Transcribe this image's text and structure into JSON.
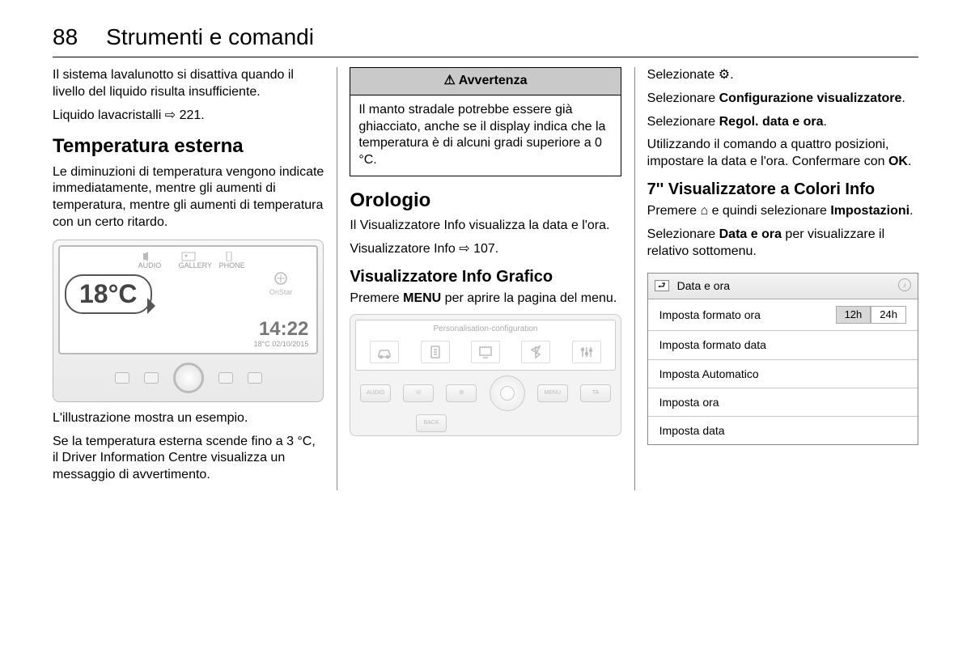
{
  "header": {
    "page_num": "88",
    "chapter": "Strumenti e comandi"
  },
  "col1": {
    "p1": "Il sistema lavalunotto si disattiva quando il livello del liquido risulta insufficiente.",
    "p2": "Liquido lavacristalli ⇨ 221.",
    "h1": "Temperatura esterna",
    "p3": "Le diminuzioni di temperatura vengono indicate immediatamente, mentre gli aumenti di temperatura, mentre gli aumenti di temperatura con un certo ritardo.",
    "icons": [
      "AUDIO",
      "GALLERY",
      "PHONE"
    ],
    "onstar": "OnStar",
    "temp": "18°C",
    "time": "14:22",
    "date_small": "18°C   02/10/2015",
    "p4": "L'illustrazione mostra un esempio.",
    "p5": "Se la temperatura esterna scende fino a 3 °C, il Driver Information Centre visualizza un messaggio di avvertimento."
  },
  "col2": {
    "warn_head": "⚠ Avvertenza",
    "warn_body": "Il manto stradale potrebbe essere già ghiacciato, anche se il display indica che la temperatura è di alcuni gradi superiore a 0 °C.",
    "h1": "Orologio",
    "p1": "Il Visualizzatore Info visualizza la data e l'ora.",
    "p2": "Visualizzatore Info ⇨ 107.",
    "h2": "Visualizzatore Info Grafico",
    "p3a": "Premere ",
    "p3b": "MENU",
    "p3c": " per aprire la pagina del menu.",
    "menu_title": "Personalisation-configuration",
    "btns": [
      "AUDIO",
      "☏",
      "⚙",
      "BACK",
      "",
      "MENU",
      "TA"
    ]
  },
  "col3": {
    "p1": "Selezionate ⚙.",
    "p2a": "Selezionare ",
    "p2b": "Configurazione visualizzatore",
    "p3a": "Selezionare ",
    "p3b": "Regol. data e ora",
    "p4a": "Utilizzando il comando a quattro posizioni, impostare la data e l'ora. Confermare con ",
    "p4b": "OK",
    "h2": "7'' Visualizzatore a Colori Info",
    "p5a": "Premere ⌂ e quindi selezionare ",
    "p5b": "Impostazioni",
    "p6a": "Selezionare ",
    "p6b": "Data e ora",
    "p6c": " per visualizzare il relativo sottomenu.",
    "menu": {
      "title": "Data e ora",
      "rows": [
        {
          "label": "Imposta formato ora",
          "seg": [
            "12h",
            "24h"
          ],
          "active": 0
        },
        {
          "label": "Imposta formato data"
        },
        {
          "label": "Imposta Automatico"
        },
        {
          "label": "Imposta ora"
        },
        {
          "label": "Imposta data"
        }
      ]
    }
  }
}
